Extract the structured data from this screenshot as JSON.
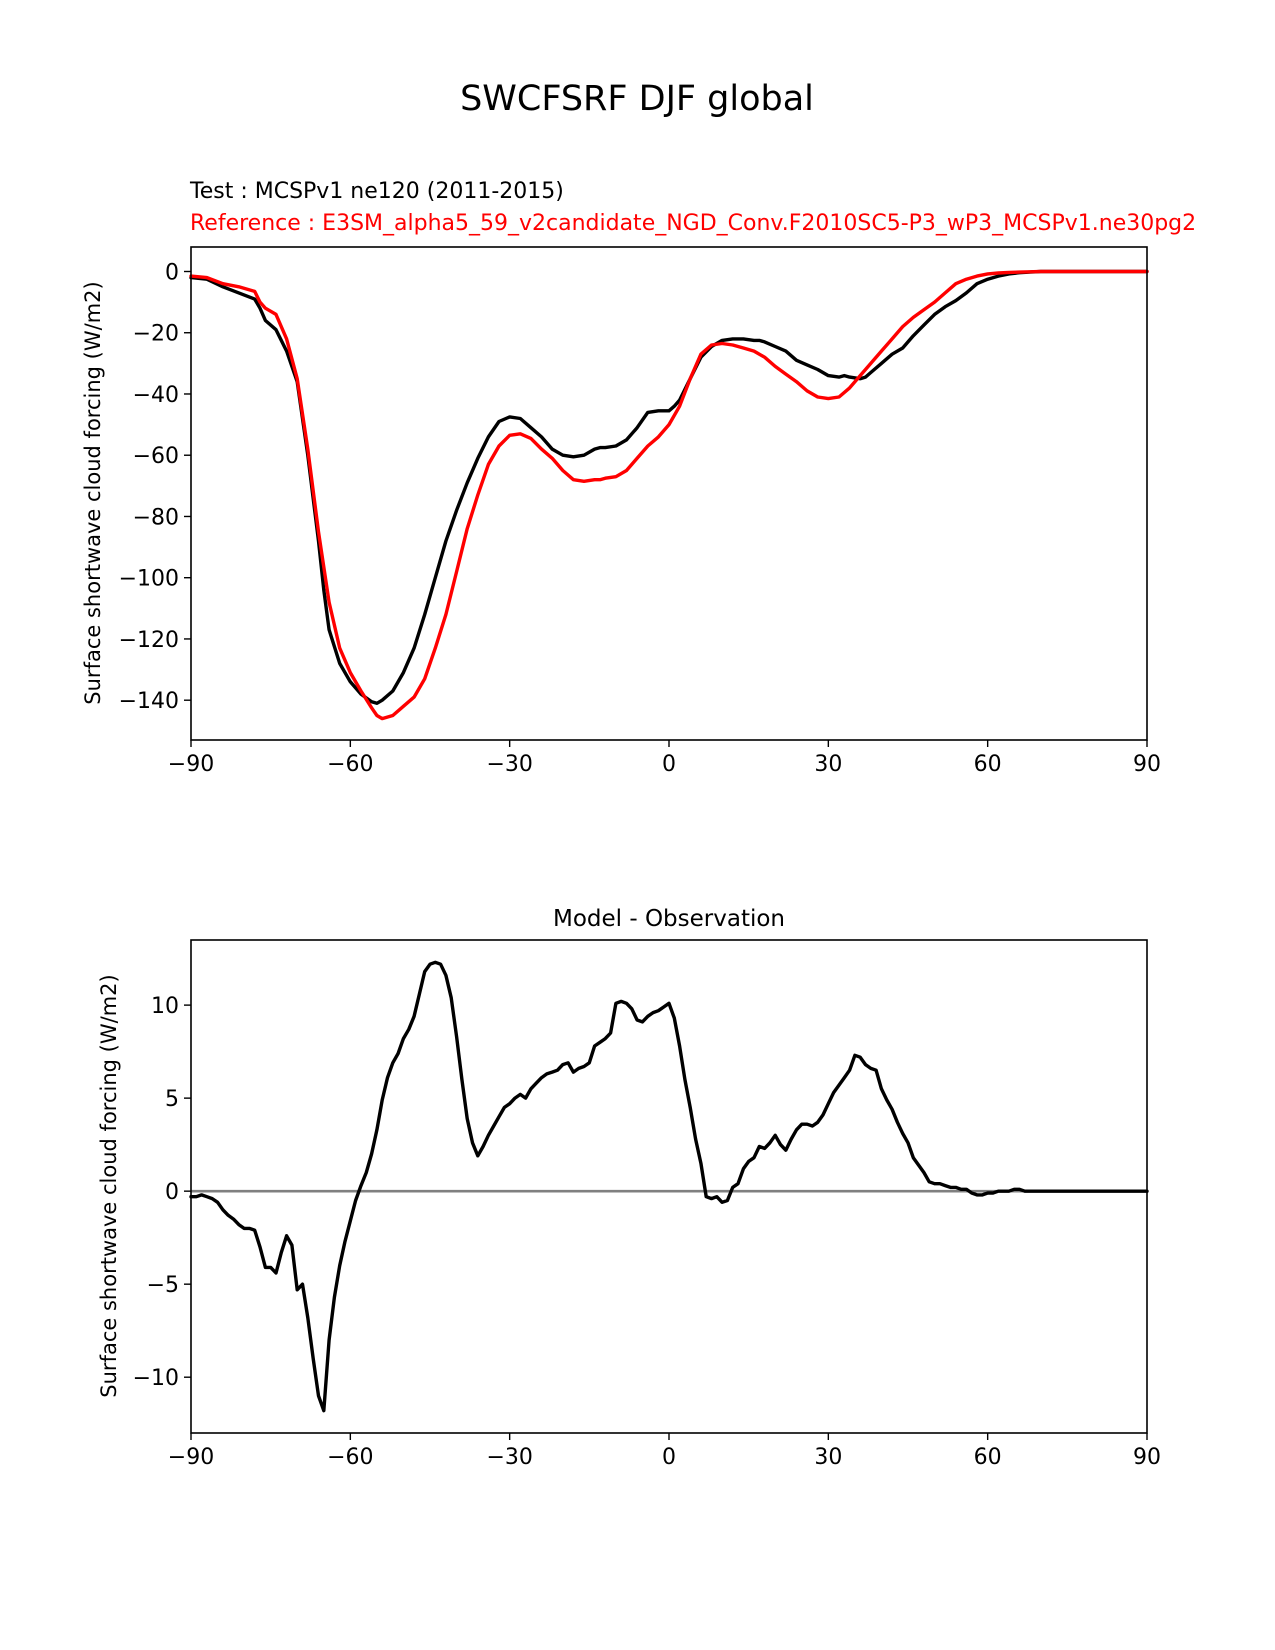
{
  "figure": {
    "title": "SWCFSRF DJF global"
  },
  "chart_data": [
    {
      "type": "line",
      "test_label": "Test : MCSPv1 ne120 (2011-2015)",
      "reference_label": "Reference : E3SM_alpha5_59_v2candidate_NGD_Conv.F2010SC5-P3_wP3_MCSPv1.ne30pg2",
      "xlabel": "",
      "ylabel": "Surface shortwave cloud forcing (W/m2)",
      "xlim": [
        -90,
        90
      ],
      "ylim": [
        -153,
        8
      ],
      "xticks": [
        -90,
        -60,
        -30,
        0,
        30,
        60,
        90
      ],
      "yticks": [
        -140,
        -120,
        -100,
        -80,
        -60,
        -40,
        -20,
        0
      ],
      "grid": false,
      "colors": {
        "test": "#000000",
        "reference": "#ff0000"
      },
      "series": [
        {
          "key": "test",
          "x": [
            -90,
            -87,
            -84,
            -81,
            -78,
            -77,
            -76,
            -74,
            -72,
            -70,
            -68,
            -66,
            -65,
            -64,
            -62,
            -60,
            -58,
            -56,
            -55,
            -54,
            -52,
            -50,
            -48,
            -46,
            -44,
            -42,
            -40,
            -38,
            -36,
            -34,
            -32,
            -30,
            -28,
            -26,
            -24,
            -22,
            -20,
            -18,
            -16,
            -14,
            -13,
            -12,
            -10,
            -8,
            -6,
            -4,
            -2,
            0,
            1,
            2,
            4,
            6,
            8,
            10,
            12,
            14,
            16,
            17,
            18,
            20,
            22,
            24,
            26,
            28,
            30,
            32,
            33,
            34,
            36,
            37,
            38,
            40,
            42,
            44,
            46,
            48,
            50,
            52,
            54,
            56,
            58,
            60,
            62,
            64,
            66,
            68,
            70,
            75,
            80,
            85,
            90
          ],
          "y": [
            -2,
            -2.5,
            -5,
            -7,
            -9,
            -12,
            -16,
            -19,
            -26,
            -36,
            -60,
            -88,
            -104,
            -117,
            -128,
            -134,
            -138,
            -140.5,
            -141,
            -140,
            -137,
            -131,
            -123,
            -112,
            -100,
            -88,
            -78,
            -69,
            -61,
            -54,
            -49,
            -47.5,
            -48,
            -51,
            -54,
            -58,
            -60,
            -60.5,
            -60,
            -58,
            -57.5,
            -57.5,
            -57,
            -55,
            -51,
            -46,
            -45.5,
            -45.5,
            -44,
            -42,
            -35,
            -28,
            -24.5,
            -22.5,
            -22,
            -22,
            -22.5,
            -22.5,
            -23,
            -24.5,
            -26,
            -29,
            -30.5,
            -32,
            -34,
            -34.5,
            -34,
            -34.5,
            -35,
            -34.5,
            -33,
            -30,
            -27,
            -25,
            -21,
            -17.5,
            -14,
            -11.5,
            -9.5,
            -7,
            -4,
            -2.5,
            -1.5,
            -0.8,
            -0.4,
            -0.2,
            0,
            0,
            0,
            0,
            0
          ]
        },
        {
          "key": "reference",
          "x": [
            -90,
            -87,
            -84,
            -81,
            -78,
            -77,
            -76,
            -74,
            -72,
            -70,
            -68,
            -66,
            -64,
            -62,
            -60,
            -58,
            -56,
            -55,
            -54,
            -52,
            -50,
            -48,
            -46,
            -44,
            -42,
            -40,
            -38,
            -36,
            -34,
            -32,
            -30,
            -28,
            -26,
            -24,
            -22,
            -20,
            -18,
            -16,
            -14,
            -13,
            -12,
            -10,
            -8,
            -6,
            -4,
            -2,
            0,
            2,
            4,
            6,
            8,
            10,
            12,
            14,
            16,
            18,
            20,
            22,
            24,
            26,
            28,
            30,
            32,
            34,
            36,
            38,
            40,
            42,
            44,
            46,
            48,
            50,
            52,
            54,
            56,
            58,
            60,
            62,
            64,
            66,
            68,
            70,
            75,
            80,
            85,
            90
          ],
          "y": [
            -1.5,
            -2,
            -4,
            -5,
            -6.5,
            -10,
            -12,
            -14,
            -22,
            -35,
            -58,
            -85,
            -108,
            -123,
            -131,
            -137,
            -142.5,
            -145,
            -146,
            -145,
            -142,
            -139,
            -133,
            -123,
            -112,
            -98,
            -84,
            -73,
            -63,
            -57,
            -53.5,
            -53,
            -54.5,
            -58,
            -61,
            -65,
            -68,
            -68.5,
            -68,
            -68,
            -67.5,
            -67,
            -65,
            -61,
            -57,
            -54,
            -50,
            -44,
            -35,
            -27,
            -24,
            -23.5,
            -24,
            -25,
            -26,
            -28,
            -31,
            -33.5,
            -36,
            -39,
            -41,
            -41.5,
            -41,
            -38,
            -34,
            -30,
            -26,
            -22,
            -18,
            -15,
            -12.5,
            -10,
            -7,
            -4,
            -2.5,
            -1.5,
            -0.8,
            -0.5,
            -0.3,
            -0.2,
            -0.1,
            0,
            0,
            0,
            0,
            0
          ]
        }
      ]
    },
    {
      "type": "line",
      "title": "Model - Observation",
      "xlabel": "",
      "ylabel": "Surface shortwave cloud forcing (W/m2)",
      "xlim": [
        -90,
        90
      ],
      "ylim": [
        -13,
        13.5
      ],
      "xticks": [
        -90,
        -60,
        -30,
        0,
        30,
        60,
        90
      ],
      "yticks": [
        -10,
        -5,
        0,
        5,
        10
      ],
      "grid": false,
      "zero_line_color": "#808080",
      "series": [
        {
          "key": "difference",
          "color": "#000000",
          "x": [
            -90,
            -89,
            -88,
            -87,
            -86,
            -85,
            -84,
            -83,
            -82,
            -81,
            -80,
            -79,
            -78,
            -77,
            -76,
            -75,
            -74,
            -73,
            -72,
            -71,
            -70,
            -69,
            -68,
            -67,
            -66,
            -65,
            -64,
            -63,
            -62,
            -61,
            -60,
            -59,
            -58,
            -57,
            -56,
            -55,
            -54,
            -53,
            -52,
            -51,
            -50,
            -49,
            -48,
            -47,
            -46,
            -45,
            -44,
            -43,
            -42,
            -41,
            -40,
            -39,
            -38,
            -37,
            -36,
            -35,
            -34,
            -33,
            -32,
            -31,
            -30,
            -29,
            -28,
            -27,
            -26,
            -25,
            -24,
            -23,
            -22,
            -21,
            -20,
            -19,
            -18,
            -17,
            -16,
            -15,
            -14,
            -13,
            -12,
            -11,
            -10,
            -9,
            -8,
            -7,
            -6,
            -5,
            -4,
            -3,
            -2,
            -1,
            0,
            1,
            2,
            3,
            4,
            5,
            6,
            7,
            8,
            9,
            10,
            11,
            12,
            13,
            14,
            15,
            16,
            17,
            18,
            19,
            20,
            21,
            22,
            23,
            24,
            25,
            26,
            27,
            28,
            29,
            30,
            31,
            32,
            33,
            34,
            35,
            36,
            37,
            38,
            39,
            40,
            41,
            42,
            43,
            44,
            45,
            46,
            47,
            48,
            49,
            50,
            51,
            52,
            53,
            54,
            55,
            56,
            57,
            58,
            59,
            60,
            61,
            62,
            63,
            64,
            65,
            66,
            67,
            68,
            70,
            75,
            80,
            85,
            90
          ],
          "y": [
            -0.3,
            -0.3,
            -0.2,
            -0.3,
            -0.4,
            -0.6,
            -1,
            -1.3,
            -1.5,
            -1.8,
            -2,
            -2,
            -2.1,
            -3,
            -4.1,
            -4.1,
            -4.4,
            -3.3,
            -2.4,
            -2.9,
            -5.3,
            -5,
            -6.8,
            -9,
            -11,
            -11.8,
            -8,
            -5.7,
            -4,
            -2.7,
            -1.6,
            -0.5,
            0.3,
            1,
            2,
            3.3,
            4.9,
            6.1,
            6.9,
            7.4,
            8.2,
            8.7,
            9.4,
            10.6,
            11.8,
            12.2,
            12.3,
            12.2,
            11.6,
            10.4,
            8.3,
            6,
            3.9,
            2.6,
            1.9,
            2.4,
            3,
            3.5,
            4,
            4.5,
            4.7,
            5,
            5.2,
            5,
            5.5,
            5.8,
            6.1,
            6.3,
            6.4,
            6.5,
            6.8,
            6.9,
            6.4,
            6.6,
            6.7,
            6.9,
            7.8,
            8,
            8.2,
            8.5,
            10.1,
            10.2,
            10.1,
            9.8,
            9.2,
            9.1,
            9.4,
            9.6,
            9.7,
            9.9,
            10.1,
            9.3,
            7.8,
            6,
            4.5,
            2.8,
            1.5,
            -0.3,
            -0.4,
            -0.3,
            -0.6,
            -0.5,
            0.2,
            0.4,
            1.2,
            1.6,
            1.8,
            2.4,
            2.3,
            2.6,
            3,
            2.5,
            2.2,
            2.8,
            3.3,
            3.6,
            3.6,
            3.5,
            3.7,
            4.1,
            4.7,
            5.3,
            5.7,
            6.1,
            6.5,
            7.3,
            7.2,
            6.8,
            6.6,
            6.5,
            5.5,
            4.9,
            4.4,
            3.7,
            3.1,
            2.6,
            1.8,
            1.4,
            1,
            0.5,
            0.4,
            0.4,
            0.3,
            0.2,
            0.2,
            0.1,
            0.1,
            -0.1,
            -0.2,
            -0.2,
            -0.1,
            -0.1,
            0,
            0,
            0,
            0.1,
            0.1,
            0,
            0,
            0,
            0,
            0,
            0,
            0
          ]
        }
      ]
    }
  ]
}
